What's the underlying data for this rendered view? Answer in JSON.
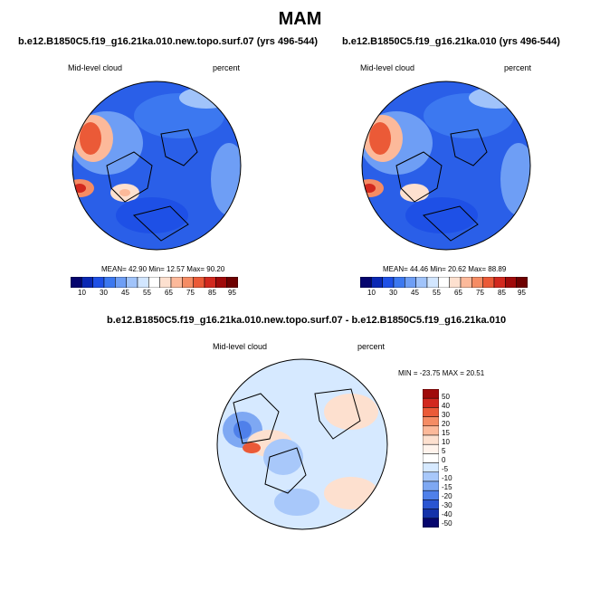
{
  "title": "MAM",
  "panels": [
    {
      "title": "b.e12.B1850C5.f19_g16.21ka.010.new.topo.surf.07 (yrs 496-544)",
      "variable": "Mid-level cloud",
      "units": "percent",
      "stats": "MEAN=  42.90  Min=  12.57  Max=  90.20",
      "colorbar_labels": [
        "10",
        "30",
        "45",
        "55",
        "65",
        "75",
        "85",
        "95"
      ]
    },
    {
      "title": "b.e12.B1850C5.f19_g16.21ka.010 (yrs 496-544)",
      "variable": "Mid-level cloud",
      "units": "percent",
      "stats": "MEAN=  44.46  Min=  20.62  Max=  88.89",
      "colorbar_labels": [
        "10",
        "30",
        "45",
        "55",
        "65",
        "75",
        "85",
        "95"
      ]
    },
    {
      "title": "b.e12.B1850C5.f19_g16.21ka.010.new.topo.surf.07 - b.e12.B1850C5.f19_g16.21ka.010",
      "variable": "Mid-level cloud",
      "units": "percent",
      "stats": "MIN = -23.75 MAX =  20.51",
      "colorbar_labels": [
        "50",
        "40",
        "30",
        "20",
        "15",
        "10",
        "5",
        "0",
        "-5",
        "-10",
        "-15",
        "-20",
        "-30",
        "-40",
        "-50"
      ]
    }
  ],
  "colors": {
    "abs_scale": [
      "#05056e",
      "#0a28b4",
      "#1e50e6",
      "#3c78f0",
      "#6e9ef5",
      "#a0c3fa",
      "#d2e6ff",
      "#ffffff",
      "#fde0cf",
      "#fcb99a",
      "#f58c64",
      "#eb5a37",
      "#d2281e",
      "#a00a0a",
      "#6e0000"
    ],
    "diff_scale": [
      "#a00a0a",
      "#d2281e",
      "#eb5a37",
      "#f58c64",
      "#fcb99a",
      "#fde0cf",
      "#fff3ec",
      "#ffffff",
      "#d6e9ff",
      "#a8c8fa",
      "#7ea8f3",
      "#4f80ea",
      "#2a55d2",
      "#1432aa",
      "#06066e"
    ]
  }
}
